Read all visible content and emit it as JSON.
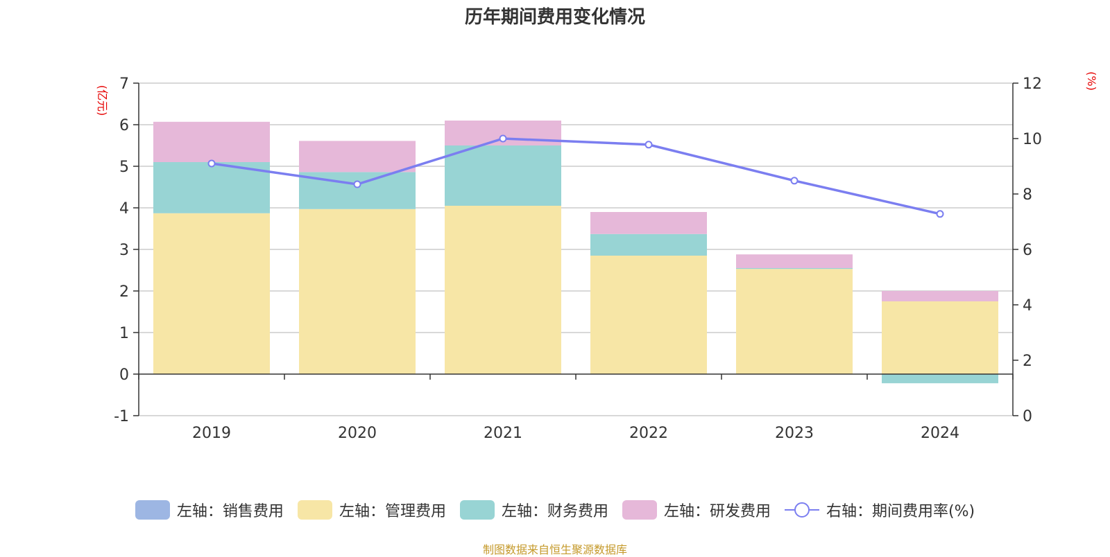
{
  "title": "历年期间费用变化情况",
  "source": "制图数据来自恒生聚源数据库",
  "colors": {
    "sales": "#9db6e3",
    "admin": "#f7e6a6",
    "finance": "#98d4d4",
    "rnd": "#e6b8d9",
    "rate": "#7b7ef0",
    "axis_unit": "#e60000",
    "source": "#c59a2b"
  },
  "chart_data": {
    "type": "bar",
    "stacked": true,
    "categories": [
      "2019",
      "2020",
      "2021",
      "2022",
      "2023",
      "2024"
    ],
    "left_axis": {
      "unit": "(亿元)",
      "ylim": [
        -1,
        7
      ],
      "ticks": [
        "-1",
        "0",
        "1",
        "2",
        "3",
        "4",
        "5",
        "6",
        "7"
      ]
    },
    "right_axis": {
      "unit": "(%)",
      "ylim": [
        0,
        12
      ],
      "ticks": [
        "0",
        "2",
        "4",
        "6",
        "8",
        "10",
        "12"
      ]
    },
    "series": [
      {
        "name": "左轴：销售费用",
        "key": "sales",
        "axis": "left",
        "values": [
          0,
          0,
          0,
          0,
          0,
          0
        ]
      },
      {
        "name": "左轴：管理费用",
        "key": "admin",
        "axis": "left",
        "values": [
          3.87,
          3.97,
          4.05,
          2.85,
          2.53,
          1.75
        ]
      },
      {
        "name": "左轴：财务费用",
        "key": "finance",
        "axis": "left",
        "values": [
          1.23,
          0.89,
          1.45,
          0.52,
          0.02,
          -0.22
        ]
      },
      {
        "name": "左轴：研发费用",
        "key": "rnd",
        "axis": "left",
        "values": [
          0.97,
          0.75,
          0.6,
          0.53,
          0.33,
          0.25
        ]
      },
      {
        "name": "右轴：期间费用率(%)",
        "key": "rate",
        "axis": "right",
        "type": "line",
        "values": [
          9.1,
          8.35,
          10.0,
          9.78,
          8.48,
          7.28
        ]
      }
    ],
    "grid": true,
    "legend": "bottom"
  }
}
